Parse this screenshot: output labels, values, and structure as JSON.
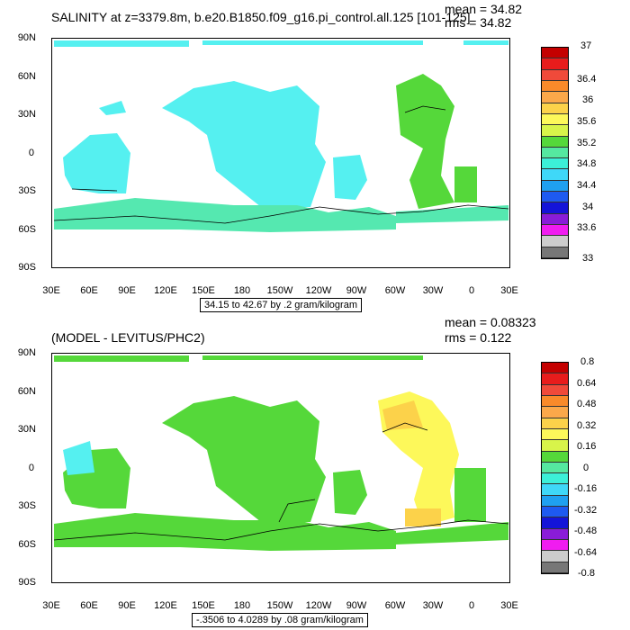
{
  "panels": [
    {
      "title": "SALINITY at z=3379.8m, b.e20.B1850.f09_g16.pi_control.all.125 [101-125]",
      "mean_text": "mean = 34.82",
      "rms_text": "rms = 34.82",
      "range_text": "34.15 to 42.67 by .2 gram/kilogram",
      "lat_labels": [
        "90N",
        "60N",
        "30N",
        "0",
        "30S",
        "60S",
        "90S"
      ],
      "lon_labels": [
        "30E",
        "60E",
        "90E",
        "120E",
        "150E",
        "180",
        "150W",
        "120W",
        "90W",
        "60W",
        "30W",
        "0",
        "30E"
      ],
      "colorbar": {
        "labels": [
          "37",
          "36.4",
          "36",
          "35.6",
          "35.2",
          "34.8",
          "34.4",
          "34",
          "33.6",
          "33"
        ],
        "colors": [
          "#c40000",
          "#e81c1c",
          "#f04a3a",
          "#f98a2a",
          "#fba84a",
          "#fcd24a",
          "#fdf85a",
          "#d8f44a",
          "#55d83a",
          "#55e8a0",
          "#3cf0d8",
          "#3fd8f8",
          "#1fa0f0",
          "#1e5af0",
          "#1414d8",
          "#8a1cd8",
          "#f01cf0",
          "#cccccc",
          "#777777"
        ]
      },
      "regions": {
        "fill_primary": "#55f0f0",
        "fill_green": "#55d83a",
        "fill_teal": "#55e8b0"
      }
    },
    {
      "title": "(MODEL - LEVITUS/PHC2)",
      "mean_text": "mean = 0.08323",
      "rms_text": "rms = 0.122",
      "range_text": "-.3506 to 4.0289 by .08 gram/kilogram",
      "lat_labels": [
        "90N",
        "60N",
        "30N",
        "0",
        "30S",
        "60S",
        "90S"
      ],
      "lon_labels": [
        "30E",
        "60E",
        "90E",
        "120E",
        "150E",
        "180",
        "150W",
        "120W",
        "90W",
        "60W",
        "30W",
        "0",
        "30E"
      ],
      "colorbar": {
        "labels": [
          "0.8",
          "0.64",
          "0.48",
          "0.32",
          "0.16",
          "0",
          "-0.16",
          "-0.32",
          "-0.48",
          "-0.64",
          "-0.8"
        ],
        "colors": [
          "#c40000",
          "#e81c1c",
          "#f04a3a",
          "#f98a2a",
          "#fba84a",
          "#fcd24a",
          "#fdf85a",
          "#d8f44a",
          "#55d83a",
          "#55e8a0",
          "#3cf0d8",
          "#3fd8f8",
          "#1fa0f0",
          "#1e5af0",
          "#1414d8",
          "#8a1cd8",
          "#f01cf0",
          "#cccccc",
          "#777777"
        ]
      },
      "regions": {
        "fill_primary": "#55d83a",
        "fill_yellow": "#fdf85a",
        "fill_orange": "#fcd24a",
        "fill_teal": "#55f0f0"
      }
    }
  ]
}
